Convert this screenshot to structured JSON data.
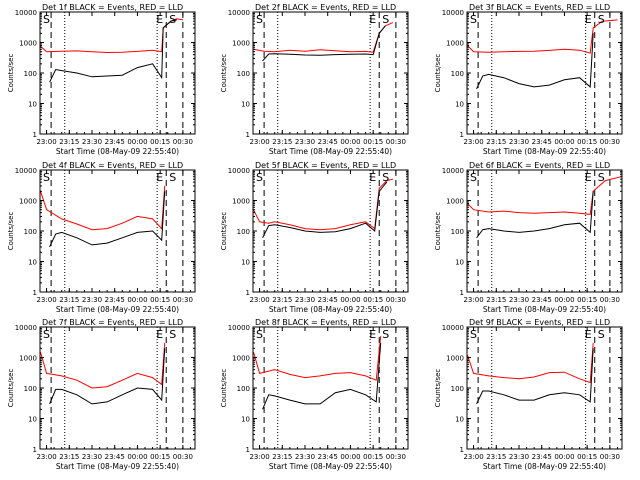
{
  "panels": [
    {
      "title": "Det 1f BLACK = Events, RED = LLD",
      "xlabel": "Start Time (08-May-09 22:55:40)",
      "ylabel": "Counts/sec",
      "markers": [
        {
          "text": "S"
        },
        {
          "text": "E"
        },
        {
          "text": "S"
        }
      ]
    },
    {
      "title": "Det 2f BLACK = Events, RED = LLD",
      "xlabel": "Start Time (08-May-09 22:55:40)",
      "ylabel": "Counts/sec",
      "markers": [
        {
          "text": "S"
        },
        {
          "text": "E"
        },
        {
          "text": "S"
        }
      ]
    },
    {
      "title": "Det 3f BLACK = Events, RED = LLD",
      "xlabel": "Start Time (08-May-09 22:55:40)",
      "ylabel": "Counts/sec",
      "markers": [
        {
          "text": "S"
        },
        {
          "text": "E"
        },
        {
          "text": "S"
        }
      ]
    },
    {
      "title": "Det 4f BLACK = Events, RED = LLD",
      "xlabel": "Start Time (08-May-09 22:55:40)",
      "ylabel": "Counts/sec",
      "markers": [
        {
          "text": "S"
        },
        {
          "text": "E"
        },
        {
          "text": "S"
        }
      ]
    },
    {
      "title": "Det 5f BLACK = Events, RED = LLD",
      "xlabel": "Start Time (08-May-09 22:55:40)",
      "ylabel": "Counts/sec",
      "markers": [
        {
          "text": "S"
        },
        {
          "text": "E"
        },
        {
          "text": "S"
        }
      ]
    },
    {
      "title": "Det 6f BLACK = Events, RED = LLD",
      "xlabel": "Start Time (08-May-09 22:55:40)",
      "ylabel": "Counts/sec",
      "markers": [
        {
          "text": "S"
        },
        {
          "text": "E"
        },
        {
          "text": "S"
        }
      ]
    },
    {
      "title": "Det 7f BLACK = Events, RED = LLD",
      "xlabel": "Start Time (08-May-09 22:55:40)",
      "ylabel": "Counts/sec",
      "markers": [
        {
          "text": "S"
        },
        {
          "text": "E"
        },
        {
          "text": "S"
        }
      ]
    },
    {
      "title": "Det 8f BLACK = Events, RED = LLD",
      "xlabel": "Start Time (08-May-09 22:55:40)",
      "ylabel": "Counts/sec",
      "markers": [
        {
          "text": "S"
        },
        {
          "text": "E"
        },
        {
          "text": "S"
        }
      ]
    },
    {
      "title": "Det 9f BLACK = Events, RED = LLD",
      "xlabel": "Start Time (08-May-09 22:55:40)",
      "ylabel": "Counts/sec",
      "markers": [
        {
          "text": "S"
        },
        {
          "text": "E"
        },
        {
          "text": "S"
        }
      ]
    }
  ],
  "chart_data": [
    {
      "type": "line",
      "title": "Det 1f BLACK = Events, RED = LLD",
      "xlabel": "Start Time (08-May-09 22:55:40)",
      "ylabel": "Counts/sec",
      "yscale": "log",
      "ylim": [
        1,
        10000
      ],
      "xlim": [
        "22:55:40",
        "00:38:00"
      ],
      "xticks": [
        "23:00",
        "23:15",
        "23:30",
        "23:45",
        "00:00",
        "00:15",
        "00:30"
      ],
      "yticks": [
        "1",
        "10",
        "100",
        "1000",
        "10000"
      ],
      "dashed_lines": [
        "23:03",
        "00:19",
        "00:30"
      ],
      "dotted_lines": [
        "23:12",
        "00:13"
      ],
      "series": [
        {
          "color": "#ff0000",
          "x": [
            "22:56",
            "23:00",
            "23:10",
            "23:20",
            "23:30",
            "23:40",
            "23:50",
            "00:00",
            "00:10",
            "00:16",
            "00:17",
            "00:22",
            "00:26",
            "00:30"
          ],
          "values": [
            750,
            500,
            520,
            530,
            500,
            470,
            480,
            510,
            560,
            500,
            3000,
            5000,
            6000,
            5500
          ]
        },
        {
          "color": "#000000",
          "x": [
            "23:02",
            "23:06",
            "23:10",
            "23:20",
            "23:30",
            "23:40",
            "23:50",
            "00:00",
            "00:10",
            "00:16",
            "00:17",
            "00:22",
            "00:26"
          ],
          "values": [
            50,
            130,
            120,
            100,
            75,
            80,
            85,
            150,
            200,
            70,
            3000,
            5000,
            5500
          ]
        }
      ]
    },
    {
      "type": "line",
      "title": "Det 2f BLACK = Events, RED = LLD",
      "xlabel": "Start Time (08-May-09 22:55:40)",
      "ylabel": "Counts/sec",
      "yscale": "log",
      "ylim": [
        1,
        10000
      ],
      "xlim": [
        "22:55:40",
        "00:38:00"
      ],
      "xticks": [
        "23:00",
        "23:15",
        "23:30",
        "23:45",
        "00:00",
        "00:15",
        "00:30"
      ],
      "yticks": [
        "1",
        "10",
        "100",
        "1000",
        "10000"
      ],
      "dashed_lines": [
        "23:03",
        "00:19",
        "00:30"
      ],
      "dotted_lines": [
        "23:12",
        "00:13"
      ],
      "series": [
        {
          "color": "#ff0000",
          "x": [
            "22:56",
            "23:03",
            "23:10",
            "23:20",
            "23:30",
            "23:40",
            "23:50",
            "00:00",
            "00:10",
            "00:15",
            "00:19",
            "00:23",
            "00:28"
          ],
          "values": [
            600,
            520,
            500,
            560,
            520,
            580,
            540,
            500,
            510,
            480,
            2000,
            3500,
            4500
          ]
        },
        {
          "color": "#000000",
          "x": [
            "23:02",
            "23:06",
            "23:10",
            "23:20",
            "23:30",
            "23:40",
            "23:50",
            "00:00",
            "00:10",
            "00:15",
            "00:19",
            "00:23"
          ],
          "values": [
            250,
            420,
            430,
            410,
            390,
            380,
            400,
            410,
            420,
            400,
            2000,
            3500
          ]
        }
      ]
    },
    {
      "type": "line",
      "title": "Det 3f BLACK = Events, RED = LLD",
      "xlabel": "Start Time (08-May-09 22:55:40)",
      "ylabel": "Counts/sec",
      "yscale": "log",
      "ylim": [
        1,
        10000
      ],
      "xlim": [
        "22:55:40",
        "00:38:00"
      ],
      "xticks": [
        "23:00",
        "23:15",
        "23:30",
        "23:45",
        "00:00",
        "00:15",
        "00:30"
      ],
      "yticks": [
        "1",
        "10",
        "100",
        "1000",
        "10000"
      ],
      "dashed_lines": [
        "23:03",
        "00:20",
        "00:30"
      ],
      "dotted_lines": [
        "23:12",
        "00:14"
      ],
      "series": [
        {
          "color": "#ff0000",
          "x": [
            "22:56",
            "23:00",
            "23:10",
            "23:20",
            "23:30",
            "23:40",
            "23:50",
            "00:00",
            "00:10",
            "00:17",
            "00:19",
            "00:25",
            "00:35"
          ],
          "values": [
            800,
            500,
            480,
            500,
            510,
            520,
            550,
            600,
            560,
            450,
            3000,
            5000,
            5500
          ]
        },
        {
          "color": "#000000",
          "x": [
            "23:02",
            "23:06",
            "23:10",
            "23:20",
            "23:30",
            "23:40",
            "23:50",
            "00:00",
            "00:10",
            "00:17",
            "00:19"
          ],
          "values": [
            30,
            80,
            90,
            70,
            45,
            35,
            40,
            60,
            70,
            35,
            2000
          ]
        }
      ]
    },
    {
      "type": "line",
      "title": "Det 4f BLACK = Events, RED = LLD",
      "xlabel": "Start Time (08-May-09 22:55:40)",
      "ylabel": "Counts/sec",
      "yscale": "log",
      "ylim": [
        1,
        10000
      ],
      "xlim": [
        "22:55:40",
        "00:38:00"
      ],
      "xticks": [
        "23:00",
        "23:15",
        "23:30",
        "23:45",
        "00:00",
        "00:15",
        "00:30"
      ],
      "yticks": [
        "1",
        "10",
        "100",
        "1000",
        "10000"
      ],
      "dashed_lines": [
        "23:03",
        "00:19",
        "00:30"
      ],
      "dotted_lines": [
        "23:12",
        "00:13"
      ],
      "series": [
        {
          "color": "#ff0000",
          "x": [
            "22:56",
            "23:00",
            "23:10",
            "23:20",
            "23:30",
            "23:40",
            "23:50",
            "00:00",
            "00:10",
            "00:16",
            "00:18"
          ],
          "values": [
            2000,
            500,
            250,
            170,
            110,
            120,
            180,
            300,
            250,
            120,
            3000
          ]
        },
        {
          "color": "#000000",
          "x": [
            "23:02",
            "23:06",
            "23:10",
            "23:20",
            "23:30",
            "23:40",
            "23:50",
            "00:00",
            "00:10",
            "00:16",
            "00:18"
          ],
          "values": [
            30,
            80,
            90,
            60,
            35,
            40,
            60,
            90,
            100,
            50,
            2000
          ]
        }
      ]
    },
    {
      "type": "line",
      "title": "Det 5f BLACK = Events, RED = LLD",
      "xlabel": "Start Time (08-May-09 22:55:40)",
      "ylabel": "Counts/sec",
      "yscale": "log",
      "ylim": [
        1,
        10000
      ],
      "xlim": [
        "22:55:40",
        "00:38:00"
      ],
      "xticks": [
        "23:00",
        "23:15",
        "23:30",
        "23:45",
        "00:00",
        "00:15",
        "00:30"
      ],
      "yticks": [
        "1",
        "10",
        "100",
        "1000",
        "10000"
      ],
      "dashed_lines": [
        "23:03",
        "00:19",
        "00:30"
      ],
      "dotted_lines": [
        "23:12",
        "00:13"
      ],
      "series": [
        {
          "color": "#ff0000",
          "x": [
            "22:56",
            "23:00",
            "23:06",
            "23:10",
            "23:20",
            "23:30",
            "23:40",
            "23:50",
            "00:00",
            "00:10",
            "00:16",
            "00:19",
            "00:24",
            "00:28"
          ],
          "values": [
            500,
            200,
            180,
            200,
            160,
            120,
            110,
            120,
            160,
            200,
            120,
            2500,
            4500,
            5000
          ]
        },
        {
          "color": "#000000",
          "x": [
            "23:02",
            "23:06",
            "23:10",
            "23:20",
            "23:30",
            "23:40",
            "23:50",
            "00:00",
            "00:10",
            "00:16",
            "00:19",
            "00:24"
          ],
          "values": [
            60,
            150,
            160,
            130,
            100,
            90,
            95,
            120,
            180,
            100,
            2000,
            4000
          ]
        }
      ]
    },
    {
      "type": "line",
      "title": "Det 6f BLACK = Events, RED = LLD",
      "xlabel": "Start Time (08-May-09 22:55:40)",
      "ylabel": "Counts/sec",
      "yscale": "log",
      "ylim": [
        1,
        10000
      ],
      "xlim": [
        "22:55:40",
        "00:38:00"
      ],
      "xticks": [
        "23:00",
        "23:15",
        "23:30",
        "23:45",
        "00:00",
        "00:15",
        "00:30"
      ],
      "yticks": [
        "1",
        "10",
        "100",
        "1000",
        "10000"
      ],
      "dashed_lines": [
        "23:03",
        "00:20",
        "00:30"
      ],
      "dotted_lines": [
        "23:12",
        "00:14"
      ],
      "series": [
        {
          "color": "#ff0000",
          "x": [
            "22:56",
            "23:00",
            "23:10",
            "23:20",
            "23:30",
            "23:40",
            "23:50",
            "00:00",
            "00:10",
            "00:17",
            "00:19",
            "00:27",
            "00:37"
          ],
          "values": [
            800,
            500,
            420,
            450,
            400,
            380,
            400,
            420,
            380,
            350,
            2000,
            4500,
            6000
          ]
        },
        {
          "color": "#000000",
          "x": [
            "23:02",
            "23:06",
            "23:10",
            "23:20",
            "23:30",
            "23:40",
            "23:50",
            "00:00",
            "00:10",
            "00:17",
            "00:19"
          ],
          "values": [
            60,
            110,
            120,
            100,
            90,
            100,
            120,
            160,
            180,
            90,
            2000
          ]
        }
      ]
    },
    {
      "type": "line",
      "title": "Det 7f BLACK = Events, RED = LLD",
      "xlabel": "Start Time (08-May-09 22:55:40)",
      "ylabel": "Counts/sec",
      "yscale": "log",
      "ylim": [
        1,
        10000
      ],
      "xlim": [
        "22:55:40",
        "00:38:00"
      ],
      "xticks": [
        "23:00",
        "23:15",
        "23:30",
        "23:45",
        "00:00",
        "00:15",
        "00:30"
      ],
      "yticks": [
        "1",
        "10",
        "100",
        "1000",
        "10000"
      ],
      "dashed_lines": [
        "23:03",
        "00:19",
        "00:30"
      ],
      "dotted_lines": [
        "23:12",
        "00:13"
      ],
      "series": [
        {
          "color": "#ff0000",
          "x": [
            "22:56",
            "23:00",
            "23:10",
            "23:20",
            "23:30",
            "23:40",
            "23:50",
            "00:00",
            "00:10",
            "00:16",
            "00:18"
          ],
          "values": [
            1500,
            300,
            250,
            180,
            100,
            110,
            180,
            300,
            220,
            130,
            3000
          ]
        },
        {
          "color": "#000000",
          "x": [
            "23:02",
            "23:06",
            "23:10",
            "23:20",
            "23:30",
            "23:40",
            "23:50",
            "00:00",
            "00:10",
            "00:16",
            "00:18"
          ],
          "values": [
            30,
            90,
            90,
            60,
            30,
            35,
            60,
            100,
            90,
            40,
            2000
          ]
        }
      ]
    },
    {
      "type": "line",
      "title": "Det 8f BLACK = Events, RED = LLD",
      "xlabel": "Start Time (08-May-09 22:55:40)",
      "ylabel": "Counts/sec",
      "yscale": "log",
      "ylim": [
        1,
        10000
      ],
      "xlim": [
        "22:55:40",
        "00:38:00"
      ],
      "xticks": [
        "23:00",
        "23:15",
        "23:30",
        "23:45",
        "00:00",
        "00:15",
        "00:30"
      ],
      "yticks": [
        "1",
        "10",
        "100",
        "1000",
        "10000"
      ],
      "dashed_lines": [
        "23:03",
        "00:19",
        "00:30"
      ],
      "dotted_lines": [
        "23:12",
        "00:13"
      ],
      "series": [
        {
          "color": "#ff0000",
          "x": [
            "22:56",
            "23:00",
            "23:10",
            "23:20",
            "23:30",
            "23:40",
            "23:50",
            "00:00",
            "00:10",
            "00:17",
            "00:20"
          ],
          "values": [
            1500,
            300,
            400,
            280,
            220,
            250,
            300,
            320,
            250,
            180,
            5000
          ]
        },
        {
          "color": "#000000",
          "x": [
            "23:02",
            "23:06",
            "23:10",
            "23:20",
            "23:30",
            "23:40",
            "23:50",
            "00:00",
            "00:10",
            "00:17",
            "00:20"
          ],
          "values": [
            20,
            60,
            55,
            40,
            30,
            30,
            70,
            90,
            60,
            35,
            3000
          ]
        }
      ]
    },
    {
      "type": "line",
      "title": "Det 9f BLACK = Events, RED = LLD",
      "xlabel": "Start Time (08-May-09 22:55:40)",
      "ylabel": "Counts/sec",
      "yscale": "log",
      "ylim": [
        1,
        10000
      ],
      "xlim": [
        "22:55:40",
        "00:38:00"
      ],
      "xticks": [
        "23:00",
        "23:15",
        "23:30",
        "23:45",
        "00:00",
        "00:15",
        "00:30"
      ],
      "yticks": [
        "1",
        "10",
        "100",
        "1000",
        "10000"
      ],
      "dashed_lines": [
        "23:03",
        "00:20",
        "00:30"
      ],
      "dotted_lines": [
        "23:12",
        "00:14"
      ],
      "series": [
        {
          "color": "#ff0000",
          "x": [
            "22:56",
            "23:00",
            "23:10",
            "23:20",
            "23:30",
            "23:40",
            "23:50",
            "00:00",
            "00:10",
            "00:17",
            "00:19"
          ],
          "values": [
            1200,
            300,
            250,
            220,
            200,
            230,
            320,
            330,
            200,
            150,
            3000
          ]
        },
        {
          "color": "#000000",
          "x": [
            "23:02",
            "23:06",
            "23:10",
            "23:20",
            "23:30",
            "23:40",
            "23:50",
            "00:00",
            "00:10",
            "00:17",
            "00:19"
          ],
          "values": [
            30,
            80,
            80,
            60,
            40,
            40,
            60,
            70,
            60,
            35,
            2000
          ]
        }
      ]
    }
  ]
}
